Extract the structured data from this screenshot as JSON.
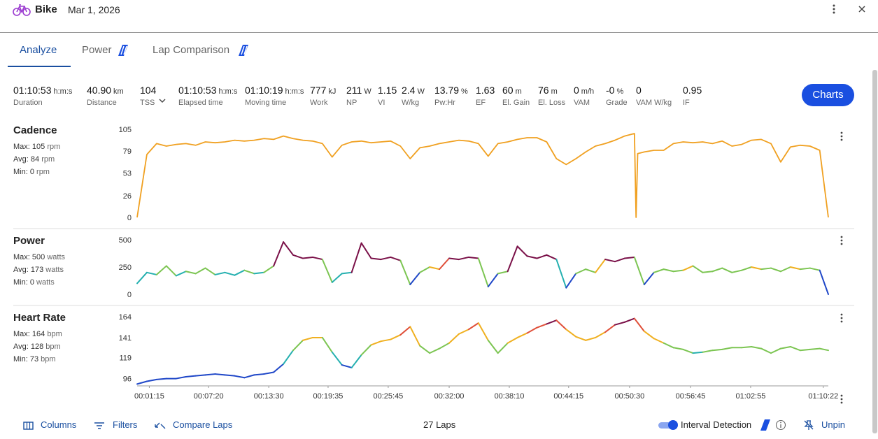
{
  "header": {
    "activity": "Bike",
    "date": "Mar 1, 2026"
  },
  "tabs": [
    "Analyze",
    "Power",
    "Lap Comparison"
  ],
  "stats": [
    {
      "value": "01:10:53",
      "unit": "h:m:s",
      "label": "Duration"
    },
    {
      "value": "40.90",
      "unit": "km",
      "label": "Distance"
    },
    {
      "value": "104",
      "label": "TSS"
    },
    {
      "value": "01:10:53",
      "unit": "h:m:s",
      "label": "Elapsed time"
    },
    {
      "value": "01:10:19",
      "unit": "h:m:s",
      "label": "Moving time"
    },
    {
      "value": "777",
      "unit": "kJ",
      "label": "Work"
    },
    {
      "value": "211",
      "unit": "W",
      "label": "NP"
    },
    {
      "value": "1.15",
      "label": "VI"
    },
    {
      "value": "2.4",
      "unit": "W",
      "label": "W/kg"
    },
    {
      "value": "13.79",
      "unit": "%",
      "label": "Pw:Hr"
    },
    {
      "value": "1.63",
      "label": "EF"
    },
    {
      "value": "60",
      "unit": "m",
      "label": "El. Gain"
    },
    {
      "value": "76",
      "unit": "m",
      "label": "El. Loss"
    },
    {
      "value": "0",
      "unit": "m/h",
      "label": "VAM"
    },
    {
      "value": "-0",
      "unit": "%",
      "label": "Grade"
    },
    {
      "value": "0",
      "label": "VAM W/kg"
    },
    {
      "value": "0.95",
      "label": "IF"
    }
  ],
  "button": "Charts",
  "chart_data": [
    {
      "type": "line",
      "title": "Cadence",
      "color": "#f0a020",
      "summary": [
        {
          "label": "Max:",
          "value": 105,
          "unit": "rpm"
        },
        {
          "label": "Avg:",
          "value": 84,
          "unit": "rpm"
        },
        {
          "label": "Min:",
          "value": 0,
          "unit": "rpm"
        }
      ],
      "xlim": [
        0,
        4253
      ],
      "ylim": [
        0,
        105
      ],
      "yticks": [
        0,
        26,
        53,
        79,
        105
      ],
      "x": [
        0,
        60,
        120,
        180,
        240,
        300,
        360,
        420,
        480,
        540,
        600,
        660,
        720,
        780,
        840,
        900,
        960,
        1020,
        1080,
        1140,
        1200,
        1260,
        1320,
        1380,
        1440,
        1500,
        1560,
        1620,
        1680,
        1740,
        1800,
        1860,
        1920,
        1980,
        2040,
        2100,
        2160,
        2220,
        2280,
        2340,
        2400,
        2460,
        2520,
        2580,
        2640,
        2700,
        2760,
        2820,
        2880,
        2940,
        3000,
        3060,
        3070,
        3080,
        3120,
        3180,
        3240,
        3300,
        3360,
        3420,
        3480,
        3540,
        3600,
        3660,
        3720,
        3780,
        3840,
        3900,
        3960,
        4020,
        4080,
        4140,
        4200,
        4253
      ],
      "values": [
        0,
        75,
        88,
        85,
        87,
        88,
        86,
        90,
        89,
        90,
        92,
        91,
        92,
        94,
        93,
        97,
        94,
        92,
        91,
        88,
        72,
        86,
        90,
        91,
        89,
        90,
        91,
        85,
        70,
        83,
        85,
        88,
        90,
        92,
        91,
        88,
        73,
        88,
        90,
        93,
        95,
        95,
        90,
        70,
        63,
        70,
        78,
        85,
        88,
        92,
        97,
        100,
        0,
        76,
        78,
        80,
        80,
        88,
        90,
        89,
        90,
        88,
        91,
        85,
        87,
        92,
        93,
        88,
        66,
        84,
        86,
        85,
        80,
        0
      ]
    },
    {
      "type": "line",
      "title": "Power",
      "color_stops": [
        {
          "value": 0,
          "color": "#1f47c8"
        },
        {
          "value": 150,
          "color": "#25b0b0"
        },
        {
          "value": 200,
          "color": "#7cc552"
        },
        {
          "value": 240,
          "color": "#f0b020"
        },
        {
          "value": 280,
          "color": "#e0503a"
        },
        {
          "value": 310,
          "color": "#7a1048"
        }
      ],
      "summary": [
        {
          "label": "Max:",
          "value": 500,
          "unit": "watts"
        },
        {
          "label": "Avg:",
          "value": 173,
          "unit": "watts"
        },
        {
          "label": "Min:",
          "value": 0,
          "unit": "watts"
        }
      ],
      "xlim": [
        0,
        4253
      ],
      "ylim": [
        0,
        500
      ],
      "yticks": [
        0,
        250,
        500
      ],
      "x": [
        0,
        60,
        120,
        180,
        240,
        300,
        360,
        420,
        480,
        540,
        600,
        660,
        720,
        780,
        840,
        900,
        960,
        1020,
        1080,
        1140,
        1200,
        1260,
        1320,
        1380,
        1440,
        1500,
        1560,
        1620,
        1680,
        1740,
        1800,
        1860,
        1920,
        1980,
        2040,
        2100,
        2160,
        2220,
        2280,
        2340,
        2400,
        2460,
        2520,
        2580,
        2640,
        2700,
        2760,
        2820,
        2880,
        2940,
        3000,
        3060,
        3120,
        3180,
        3240,
        3300,
        3360,
        3420,
        3480,
        3540,
        3600,
        3660,
        3720,
        3780,
        3840,
        3900,
        3960,
        4020,
        4080,
        4140,
        4200,
        4253
      ],
      "values": [
        100,
        200,
        180,
        260,
        170,
        210,
        190,
        240,
        180,
        200,
        175,
        220,
        190,
        200,
        260,
        480,
        360,
        330,
        340,
        320,
        110,
        190,
        200,
        470,
        330,
        320,
        340,
        310,
        90,
        200,
        250,
        230,
        330,
        320,
        340,
        330,
        70,
        190,
        210,
        440,
        350,
        330,
        360,
        320,
        60,
        190,
        230,
        200,
        320,
        300,
        330,
        340,
        90,
        200,
        230,
        210,
        220,
        260,
        200,
        210,
        240,
        200,
        220,
        250,
        230,
        240,
        210,
        250,
        230,
        240,
        220,
        0
      ]
    },
    {
      "type": "line",
      "title": "Heart Rate",
      "color_stops": [
        {
          "value": 0,
          "color": "#1f47c8"
        },
        {
          "value": 112,
          "color": "#25b0b0"
        },
        {
          "value": 125,
          "color": "#7cc552"
        },
        {
          "value": 135,
          "color": "#f0b020"
        },
        {
          "value": 148,
          "color": "#e0503a"
        },
        {
          "value": 156,
          "color": "#7a1048"
        }
      ],
      "summary": [
        {
          "label": "Max:",
          "value": 164,
          "unit": "bpm"
        },
        {
          "label": "Avg:",
          "value": 128,
          "unit": "bpm"
        },
        {
          "label": "Min:",
          "value": 73,
          "unit": "bpm"
        }
      ],
      "xlim": [
        0,
        4253
      ],
      "ylim": [
        88,
        164
      ],
      "yticks": [
        96,
        119,
        141,
        164
      ],
      "xticks": [
        {
          "value": 75,
          "label": "00:01:15"
        },
        {
          "value": 440,
          "label": "00:07:20"
        },
        {
          "value": 810,
          "label": "00:13:30"
        },
        {
          "value": 1175,
          "label": "00:19:35"
        },
        {
          "value": 1545,
          "label": "00:25:45"
        },
        {
          "value": 1920,
          "label": "00:32:00"
        },
        {
          "value": 2290,
          "label": "00:38:10"
        },
        {
          "value": 2655,
          "label": "00:44:15"
        },
        {
          "value": 3030,
          "label": "00:50:30"
        },
        {
          "value": 3405,
          "label": "00:56:45"
        },
        {
          "value": 3775,
          "label": "01:02:55"
        },
        {
          "value": 4222,
          "label": "01:10:22"
        }
      ],
      "x": [
        0,
        60,
        120,
        180,
        240,
        300,
        360,
        420,
        480,
        540,
        600,
        660,
        720,
        780,
        840,
        900,
        960,
        1020,
        1080,
        1140,
        1200,
        1260,
        1320,
        1380,
        1440,
        1500,
        1560,
        1620,
        1680,
        1740,
        1800,
        1860,
        1920,
        1980,
        2040,
        2100,
        2160,
        2220,
        2280,
        2340,
        2400,
        2460,
        2520,
        2580,
        2640,
        2700,
        2760,
        2820,
        2880,
        2940,
        3000,
        3060,
        3120,
        3180,
        3240,
        3300,
        3360,
        3420,
        3480,
        3540,
        3600,
        3660,
        3720,
        3780,
        3840,
        3900,
        3960,
        4020,
        4080,
        4140,
        4200,
        4253
      ],
      "values": [
        90,
        93,
        95,
        96,
        96,
        98,
        99,
        100,
        101,
        100,
        99,
        97,
        100,
        101,
        103,
        112,
        127,
        138,
        141,
        141,
        125,
        111,
        108,
        122,
        133,
        137,
        139,
        144,
        153,
        132,
        124,
        129,
        135,
        145,
        150,
        157,
        138,
        124,
        135,
        141,
        146,
        152,
        156,
        160,
        150,
        142,
        138,
        141,
        147,
        155,
        158,
        162,
        148,
        140,
        135,
        130,
        128,
        124,
        125,
        127,
        128,
        130,
        130,
        131,
        129,
        124,
        129,
        131,
        127,
        128,
        129,
        127
      ]
    }
  ],
  "footer": {
    "columns": "Columns",
    "filters": "Filters",
    "compare": "Compare Laps",
    "laps": "27 Laps",
    "interval": "Interval Detection",
    "unpin": "Unpin"
  }
}
